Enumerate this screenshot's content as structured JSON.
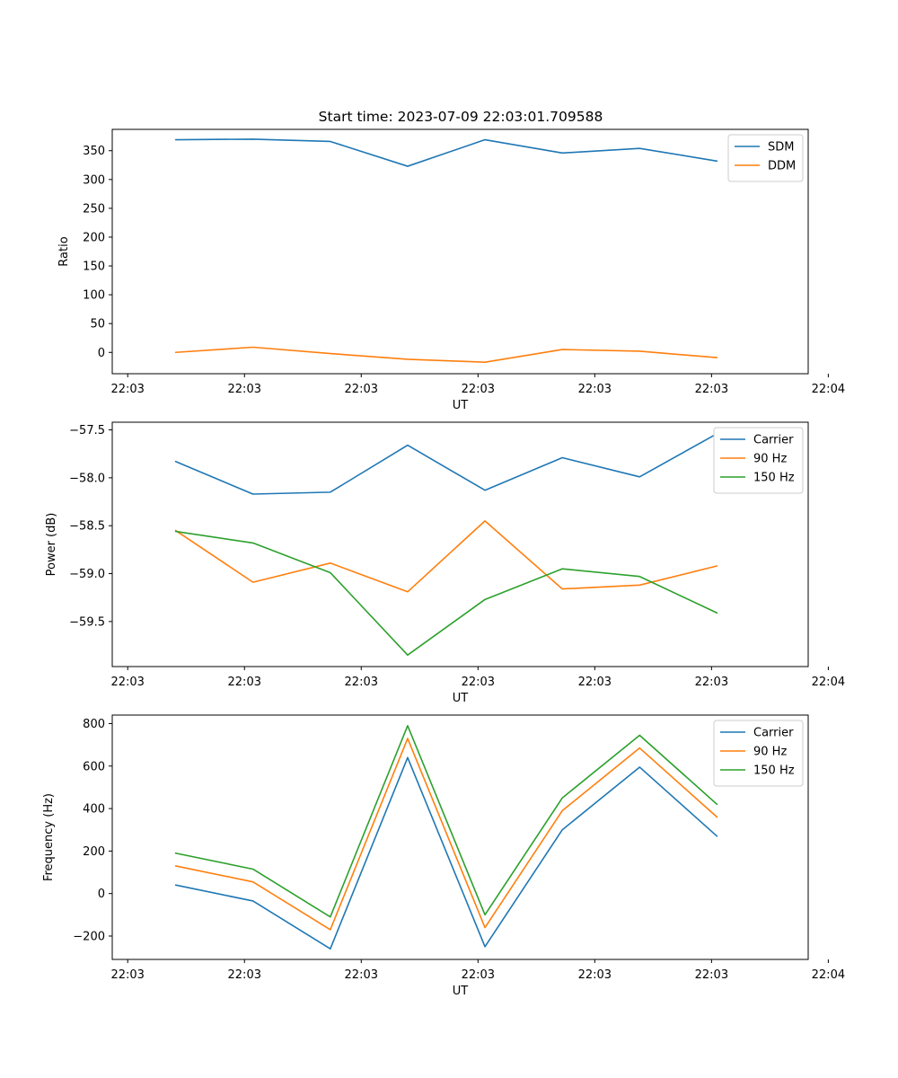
{
  "figure": {
    "title": "Start time: 2023-07-09 22:03:01.709588"
  },
  "colors": {
    "blue": "#1f77b4",
    "orange": "#ff7f0e",
    "green": "#2ca02c"
  },
  "chart_data": [
    {
      "type": "line",
      "title": "Start time: 2023-07-09 22:03:01.709588",
      "xlabel": "UT",
      "ylabel": "Ratio",
      "x": [
        1,
        2,
        3,
        4,
        5,
        6,
        7,
        8
      ],
      "xlim": [
        0.18,
        9.18
      ],
      "x_ticks": [
        0.38,
        1.89,
        3.4,
        4.91,
        6.42,
        7.93,
        9.44
      ],
      "x_tick_labels": [
        "22:03",
        "22:03",
        "22:03",
        "22:03",
        "22:03",
        "22:03",
        "22:04"
      ],
      "ylim": [
        -37,
        387
      ],
      "y_ticks": [
        0,
        50,
        100,
        150,
        200,
        250,
        300,
        350
      ],
      "y_tick_labels": [
        "0",
        "50",
        "100",
        "150",
        "200",
        "250",
        "300",
        "350"
      ],
      "legend": "top-right",
      "series": [
        {
          "name": "SDM",
          "color": "#1f77b4",
          "values": [
            369,
            370,
            366,
            323,
            369,
            346,
            354,
            332
          ]
        },
        {
          "name": "DDM",
          "color": "#ff7f0e",
          "values": [
            0,
            9,
            -2,
            -12,
            -17,
            5,
            2,
            -9
          ]
        }
      ]
    },
    {
      "type": "line",
      "title": "",
      "xlabel": "UT",
      "ylabel": "Power (dB)",
      "x": [
        1,
        2,
        3,
        4,
        5,
        6,
        7,
        8
      ],
      "xlim": [
        0.18,
        9.18
      ],
      "x_ticks": [
        0.38,
        1.89,
        3.4,
        4.91,
        6.42,
        7.93,
        9.44
      ],
      "x_tick_labels": [
        "22:03",
        "22:03",
        "22:03",
        "22:03",
        "22:03",
        "22:03",
        "22:04"
      ],
      "ylim": [
        -59.97,
        -57.42
      ],
      "y_ticks": [
        -59.5,
        -59.0,
        -58.5,
        -58.0,
        -57.5
      ],
      "y_tick_labels": [
        "−59.5",
        "−59.0",
        "−58.5",
        "−58.0",
        "−57.5"
      ],
      "legend": "top-right",
      "series": [
        {
          "name": "Carrier",
          "color": "#1f77b4",
          "values": [
            -57.83,
            -58.17,
            -58.15,
            -57.66,
            -58.13,
            -57.79,
            -57.99,
            -57.54
          ]
        },
        {
          "name": "90 Hz",
          "color": "#ff7f0e",
          "values": [
            -58.55,
            -59.09,
            -58.89,
            -59.19,
            -58.45,
            -59.16,
            -59.12,
            -58.92
          ]
        },
        {
          "name": "150 Hz",
          "color": "#2ca02c",
          "values": [
            -58.56,
            -58.68,
            -58.99,
            -59.85,
            -59.27,
            -58.95,
            -59.03,
            -59.41
          ]
        }
      ]
    },
    {
      "type": "line",
      "title": "",
      "xlabel": "UT",
      "ylabel": "Frequency (Hz)",
      "x": [
        1,
        2,
        3,
        4,
        5,
        6,
        7,
        8
      ],
      "xlim": [
        0.18,
        9.18
      ],
      "x_ticks": [
        0.38,
        1.89,
        3.4,
        4.91,
        6.42,
        7.93,
        9.44
      ],
      "x_tick_labels": [
        "22:03",
        "22:03",
        "22:03",
        "22:03",
        "22:03",
        "22:03",
        "22:04"
      ],
      "ylim": [
        -310,
        840
      ],
      "y_ticks": [
        -200,
        0,
        200,
        400,
        600,
        800
      ],
      "y_tick_labels": [
        "−200",
        "0",
        "200",
        "400",
        "600",
        "800"
      ],
      "legend": "top-right",
      "series": [
        {
          "name": "Carrier",
          "color": "#1f77b4",
          "values": [
            40,
            -35,
            -260,
            640,
            -250,
            300,
            595,
            270
          ]
        },
        {
          "name": "90 Hz",
          "color": "#ff7f0e",
          "values": [
            130,
            55,
            -170,
            730,
            -160,
            390,
            685,
            360
          ]
        },
        {
          "name": "150 Hz",
          "color": "#2ca02c",
          "values": [
            190,
            115,
            -110,
            790,
            -100,
            450,
            745,
            420
          ]
        }
      ]
    }
  ]
}
